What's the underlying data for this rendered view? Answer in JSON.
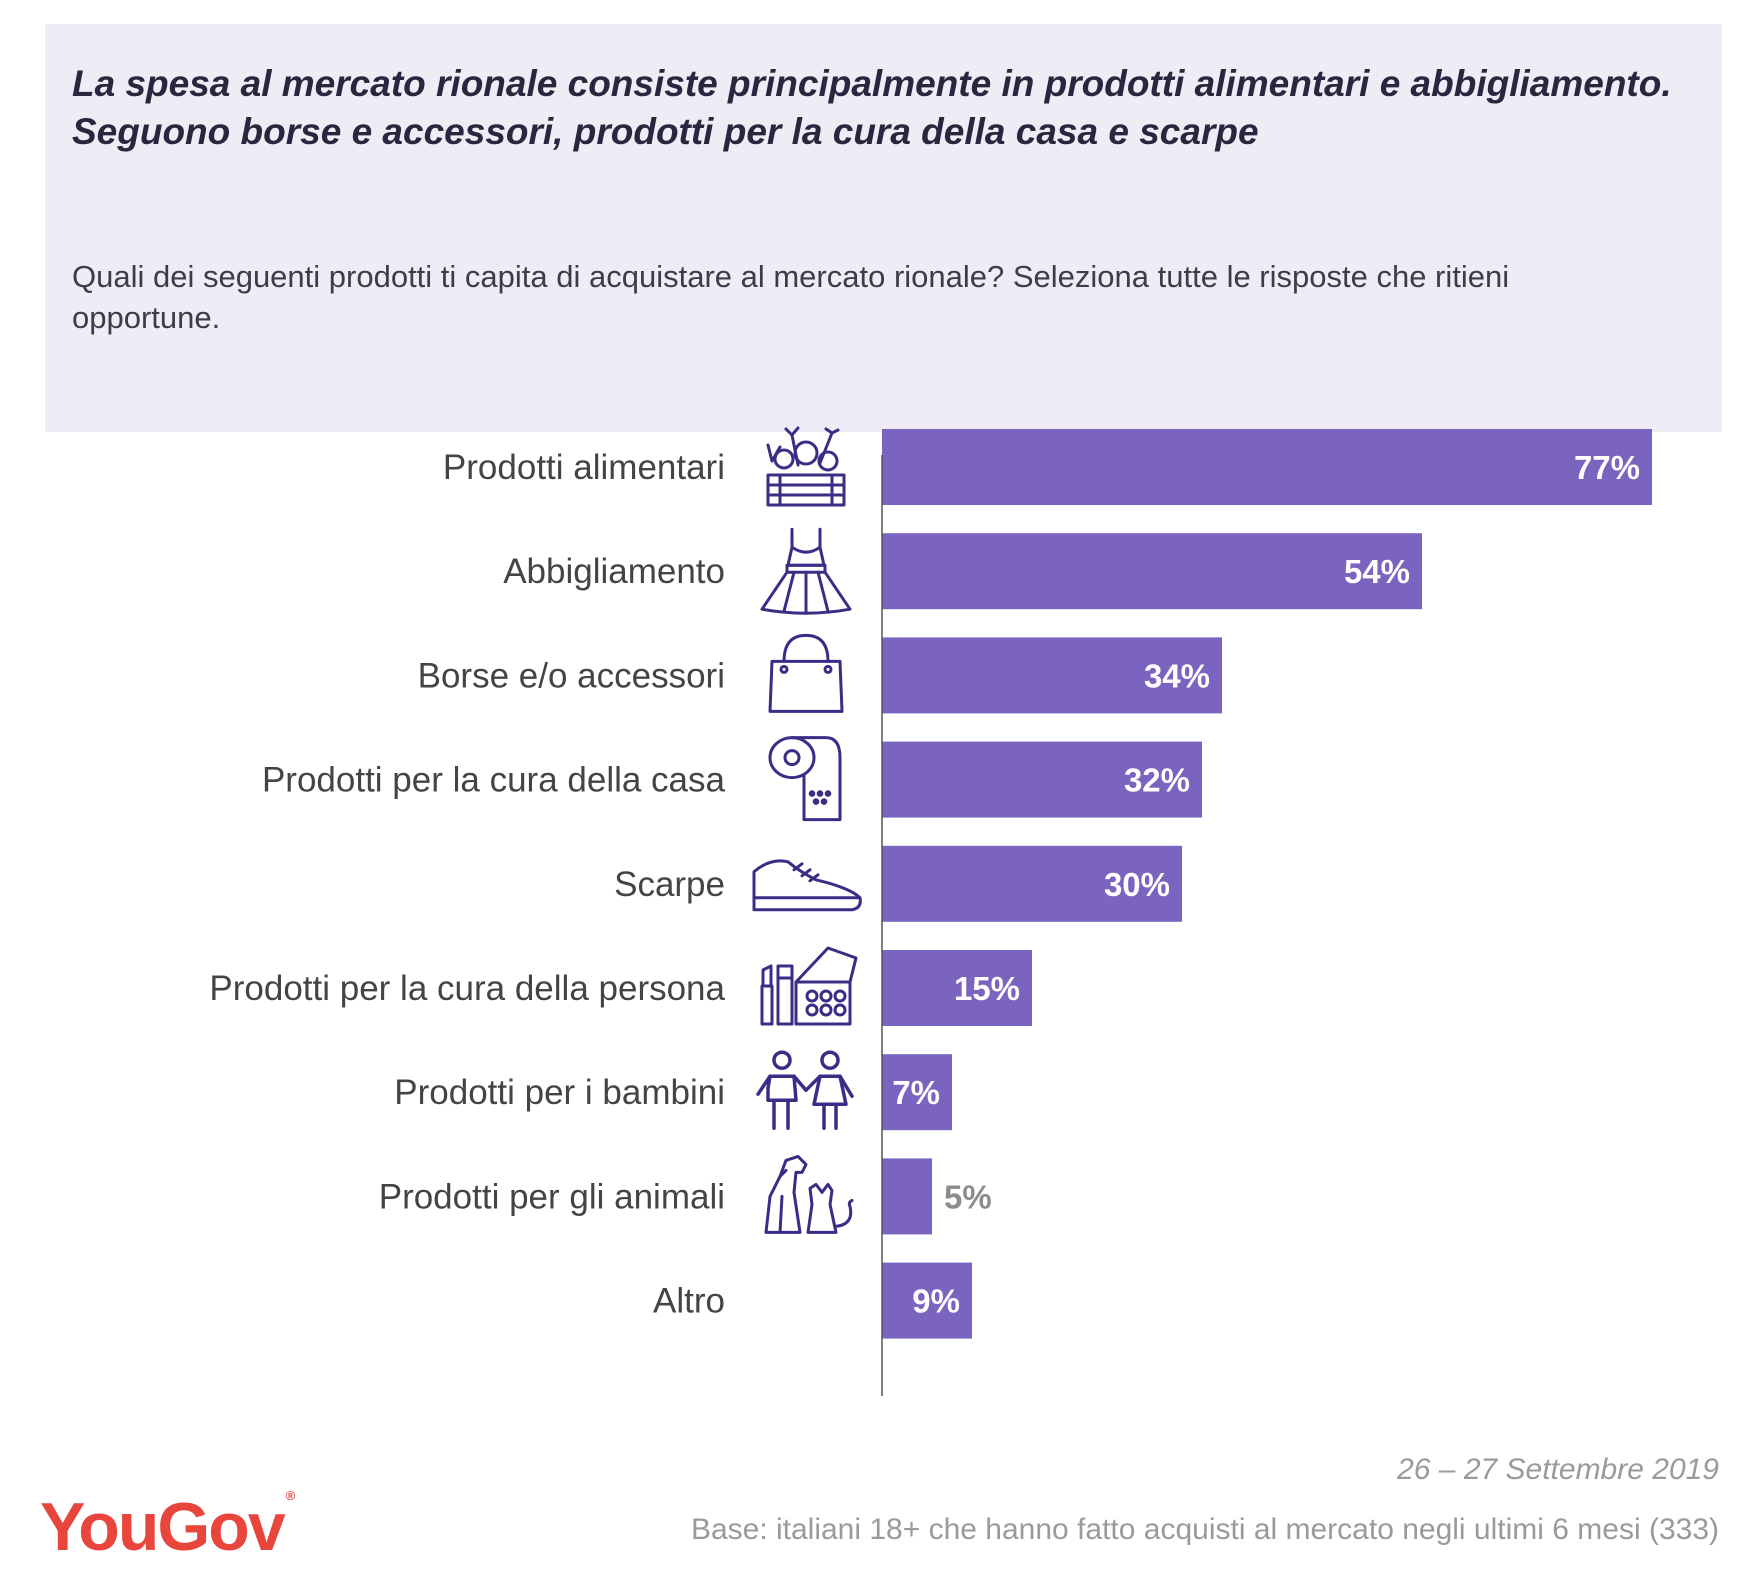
{
  "header": {
    "headline": "La spesa al mercato rionale consiste principalmente in prodotti alimentari e abbigliamento. Seguono borse e accessori, prodotti per la cura della casa e scarpe",
    "question": "Quali dei seguenti prodotti ti capita di acquistare al mercato rionale? Seleziona tutte le risposte che ritieni opportune."
  },
  "chart_data": {
    "type": "bar",
    "orientation": "horizontal",
    "categories": [
      "Prodotti alimentari",
      "Abbigliamento",
      "Borse e/o accessori",
      "Prodotti per la cura della casa",
      "Scarpe",
      "Prodotti per la cura della persona",
      "Prodotti per i bambini",
      "Prodotti per gli animali",
      "Altro"
    ],
    "values": [
      77,
      54,
      34,
      32,
      30,
      15,
      7,
      5,
      9
    ],
    "value_labels": [
      "77%",
      "54%",
      "34%",
      "32%",
      "30%",
      "15%",
      "7%",
      "5%",
      "9%"
    ],
    "icons": [
      "vegetable-crate-icon",
      "dress-icon",
      "handbag-icon",
      "toilet-paper-icon",
      "sneaker-icon",
      "makeup-icon",
      "children-icon",
      "pets-icon",
      ""
    ],
    "xlim": [
      0,
      100
    ],
    "grid": false,
    "colors": {
      "bar": "#7b63c0",
      "label_inside": "#ffffff",
      "label_outside": "#8c8c8c",
      "icon": "#3d2c86"
    }
  },
  "footer": {
    "date": "26 – 27 Settembre 2019",
    "base": "Base: italiani 18+ che hanno fatto acquisti al mercato negli ultimi 6 mesi (333)"
  },
  "logo": {
    "text": "YouGov",
    "mark": "®"
  }
}
